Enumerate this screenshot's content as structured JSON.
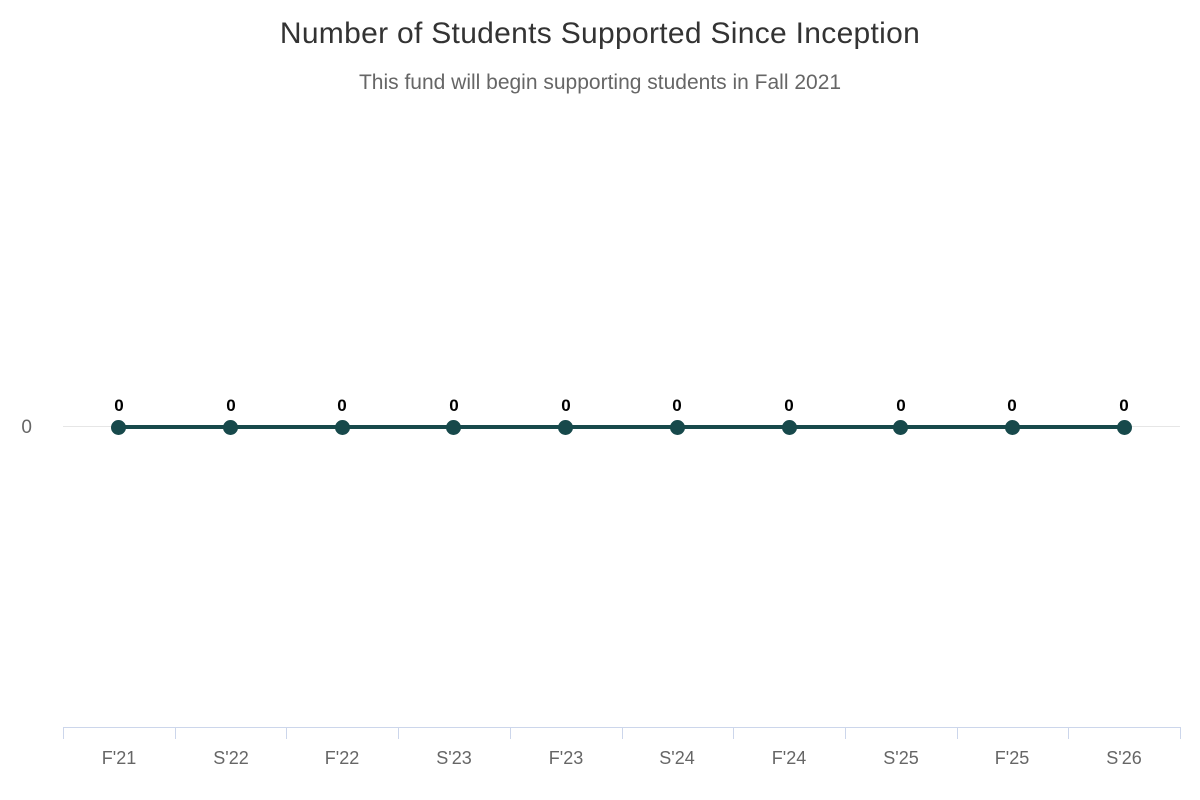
{
  "page": {
    "background_color": "#ffffff"
  },
  "chart_data": {
    "type": "line",
    "title": "Number of Students Supported Since Inception",
    "subtitle": "This fund will begin supporting students in Fall 2021",
    "categories": [
      "F'21",
      "S'22",
      "F'22",
      "S'23",
      "F'23",
      "S'24",
      "F'24",
      "S'25",
      "F'25",
      "S'26"
    ],
    "values": [
      0,
      0,
      0,
      0,
      0,
      0,
      0,
      0,
      0,
      0
    ],
    "data_labels": [
      "0",
      "0",
      "0",
      "0",
      "0",
      "0",
      "0",
      "0",
      "0",
      "0"
    ],
    "xlabel": "",
    "ylabel": "",
    "y_axis_tick_labels": [
      "0"
    ],
    "ylim": [
      0,
      0
    ],
    "grid": "single horizontal gridline at y=0",
    "legend": "none",
    "marker": "filled-circle",
    "colors": {
      "series": "#17494b",
      "data_label": "#000000",
      "grid_line": "#e6e6e6",
      "axis_line": "#ccd6eb",
      "tick_mark": "#ccd6eb",
      "axis_label_text": "#666666",
      "title_text": "#333333",
      "subtitle_text": "#666666"
    }
  }
}
